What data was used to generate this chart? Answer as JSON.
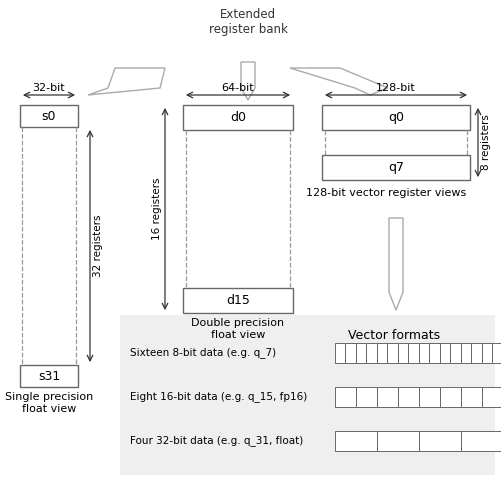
{
  "bg_color": "#ffffff",
  "panel_bg": "#efefef",
  "title_text": "Extended\nregister bank",
  "s0_label": "s0",
  "s31_label": "s31",
  "d0_label": "d0",
  "d15_label": "d15",
  "q0_label": "q0",
  "q7_label": "q7",
  "bit32_label": "32-bit",
  "bit64_label": "64-bit",
  "bit128_label": "128-bit",
  "reg32_label": "32 registers",
  "reg16_label": "16 registers",
  "reg8_label": "8 registers",
  "sp_float_label": "Single precision\nfloat view",
  "dp_float_label": "Double precision\nfloat view",
  "vec_reg_label": "128-bit vector register views",
  "vec_formats_title": "Vector formats",
  "vec_row1_label": "Sixteen 8-bit data (e.g. q_7)",
  "vec_row2_label": "Eight 16-bit data (e.g. q_15, fp16)",
  "vec_row3_label": "Four 32-bit data (e.g. q_31, float)",
  "vec_row1_cells": 16,
  "vec_row2_cells": 8,
  "vec_row3_cells": 4,
  "gray": "#888888",
  "dark": "#333333",
  "box_edge": "#666666",
  "arrow_color": "#cccccc"
}
